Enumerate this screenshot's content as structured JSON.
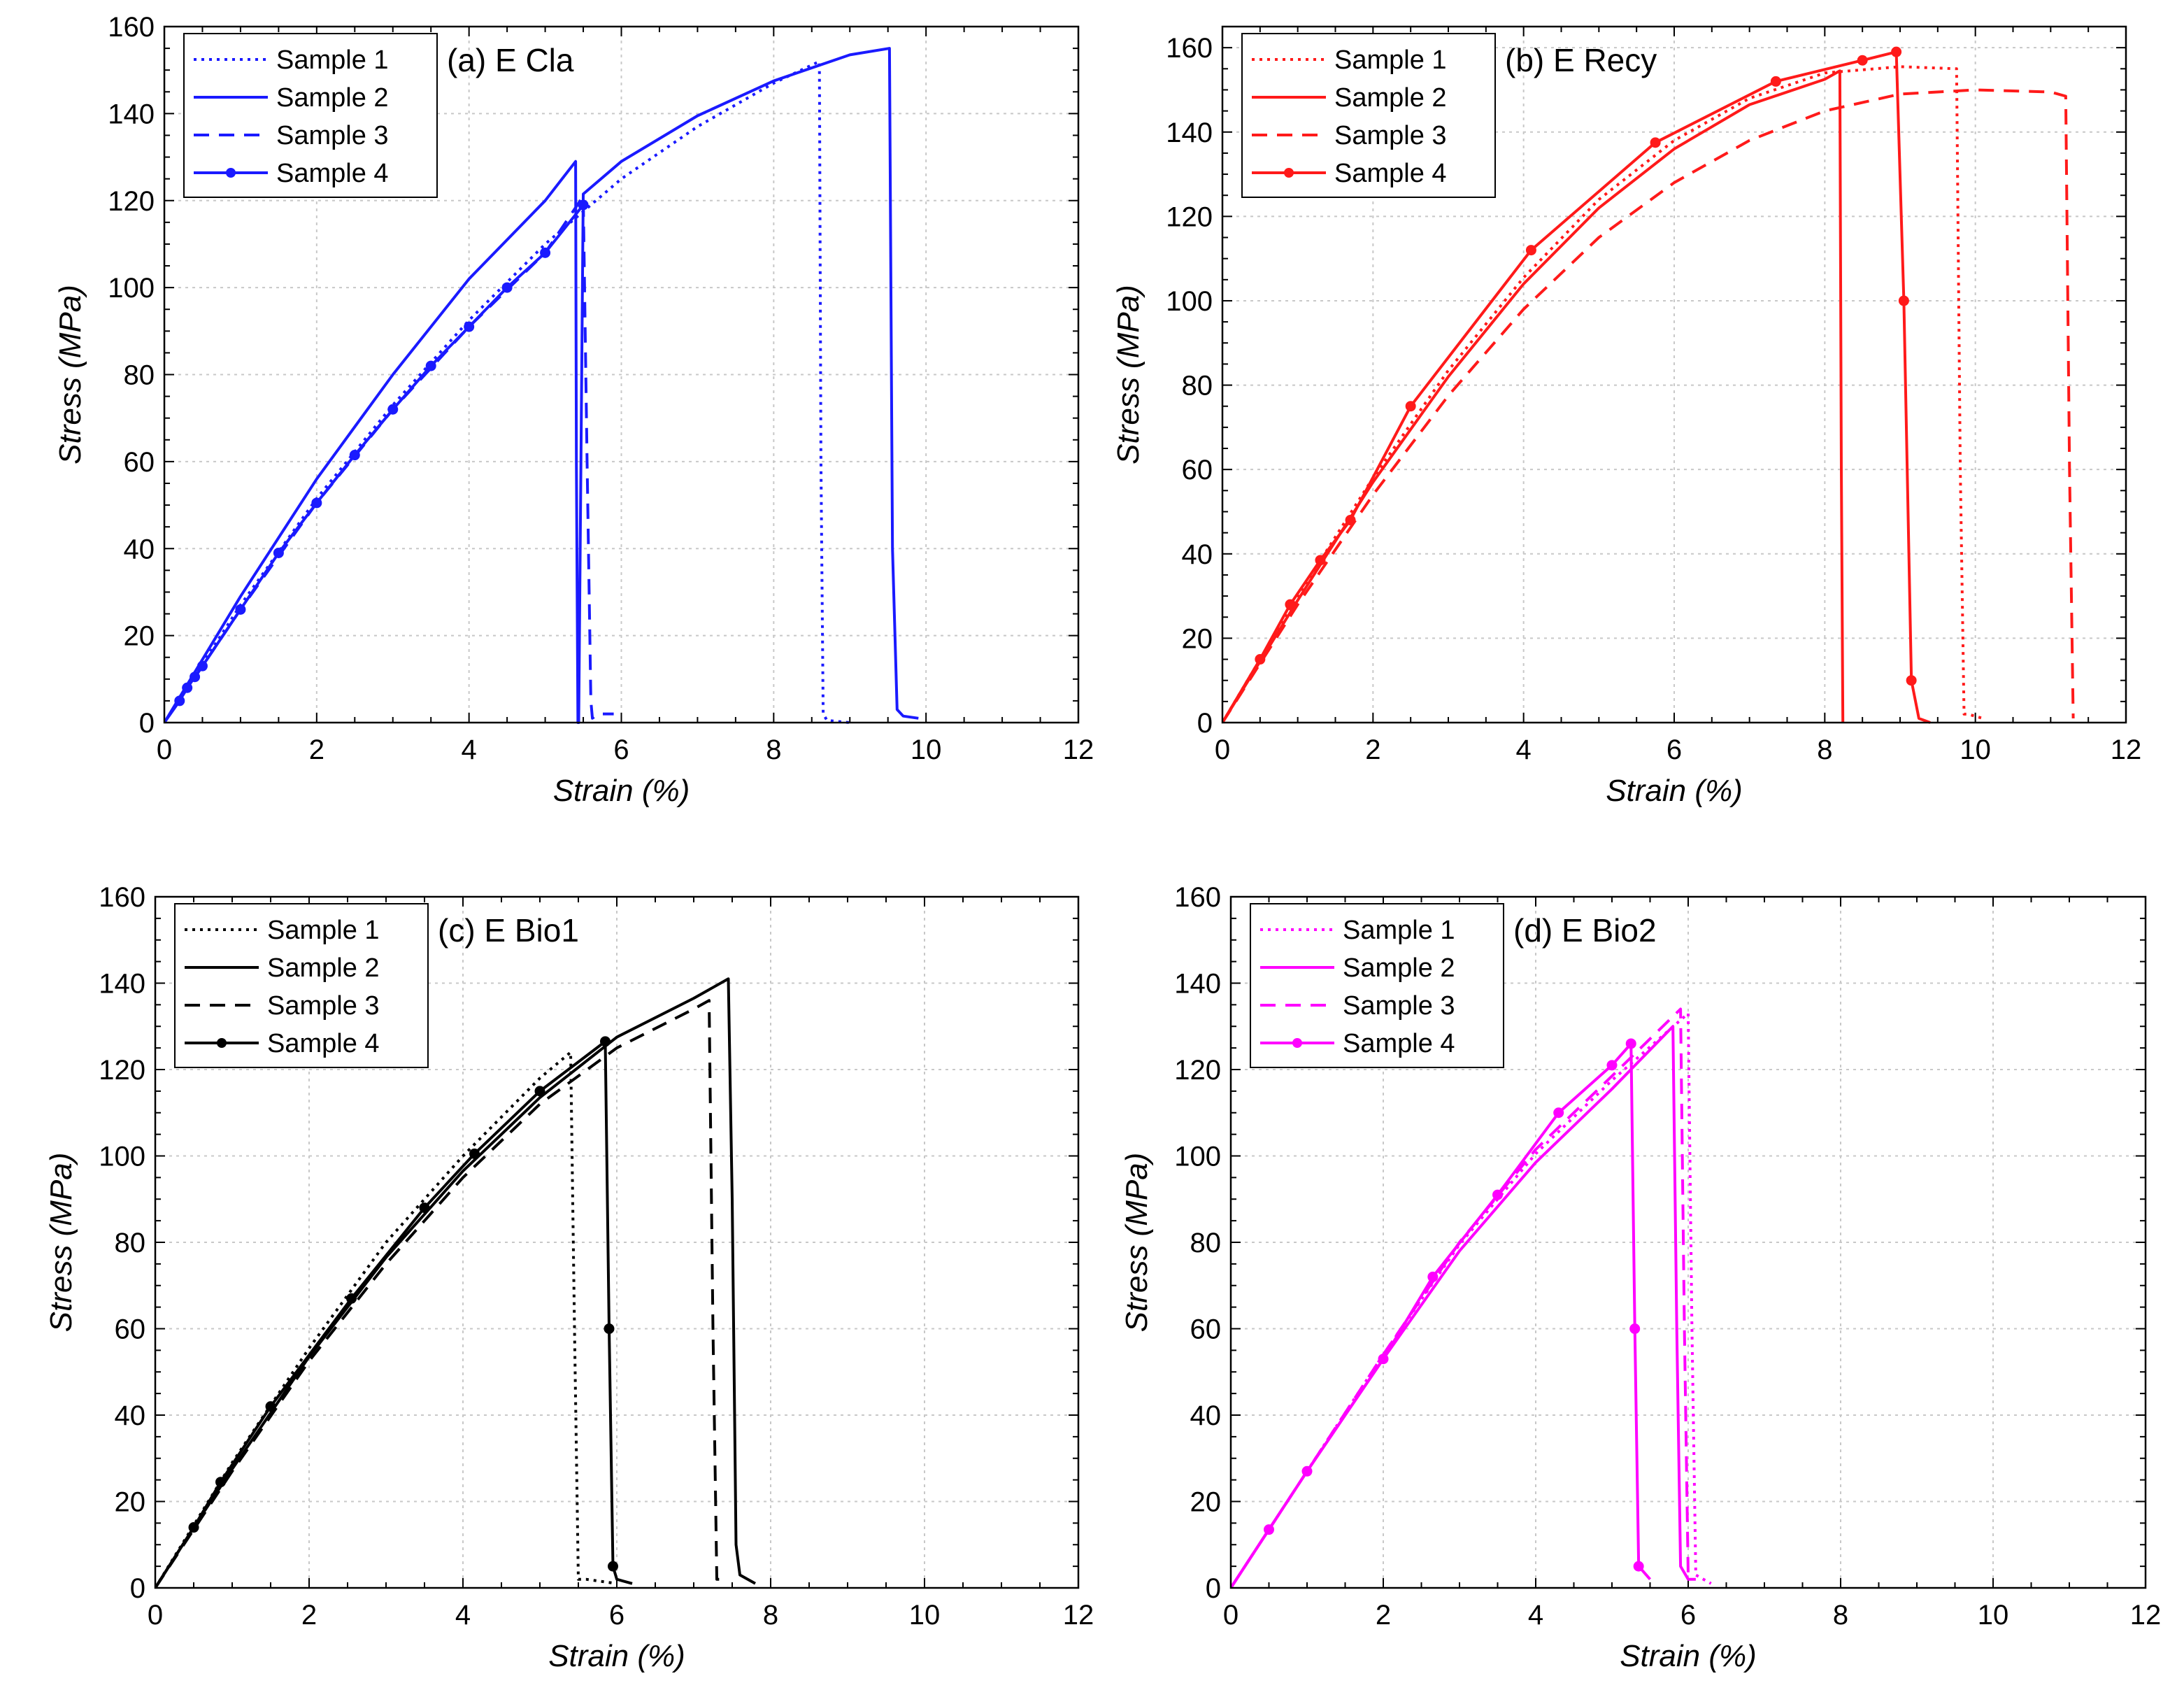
{
  "chart_data": [
    {
      "type": "line",
      "title": "(a) E Cla",
      "color": "#1a1aff",
      "xlabel": "Strain (%)",
      "ylabel": "Stress (MPa)",
      "xlim": [
        0,
        12
      ],
      "ylim": [
        0,
        160
      ],
      "xticks": [
        "0",
        "2",
        "4",
        "6",
        "8",
        "10",
        "12"
      ],
      "yticks": [
        "0",
        "20",
        "40",
        "60",
        "80",
        "100",
        "120",
        "140",
        "160"
      ],
      "grid": true,
      "legend_position": "top-left",
      "series": [
        {
          "name": "Sample 1",
          "style": "dotted",
          "marker": false,
          "x": [
            0,
            0.5,
            1,
            2,
            3,
            4,
            5,
            6,
            7,
            8,
            8.6,
            8.62,
            8.65,
            8.7,
            9.0
          ],
          "y": [
            0,
            13.5,
            27,
            51.5,
            73,
            92.5,
            110,
            125,
            137,
            147,
            152,
            60,
            2,
            0.5,
            0
          ]
        },
        {
          "name": "Sample 2",
          "style": "solid",
          "marker": false,
          "x": [
            0,
            0.5,
            1,
            2,
            3,
            4,
            5,
            5.4,
            5.41,
            5.43,
            5.44,
            5.5,
            6,
            7,
            8,
            9,
            9.52,
            9.56,
            9.62,
            9.7,
            9.9
          ],
          "y": [
            0,
            14.5,
            29,
            56,
            80,
            102,
            120,
            129,
            60,
            0,
            0,
            121.5,
            129,
            139.5,
            147.5,
            153.5,
            155,
            40,
            3,
            1.5,
            1
          ]
        },
        {
          "name": "Sample 3",
          "style": "dashed",
          "marker": false,
          "x": [
            0,
            0.5,
            1,
            2,
            3,
            4,
            5,
            5.5,
            5.55,
            5.6,
            5.62,
            5.7,
            5.9
          ],
          "y": [
            0,
            13,
            26,
            50.5,
            72,
            91,
            108,
            121,
            60,
            5,
            1,
            2,
            2
          ]
        },
        {
          "name": "Sample 4",
          "style": "solid",
          "marker": true,
          "x": [
            0,
            0.1,
            0.2,
            0.3,
            0.4,
            0.5,
            1,
            1.5,
            2,
            2.5,
            3,
            3.5,
            4,
            4.5,
            5,
            5.5
          ],
          "y": [
            0,
            2.5,
            5,
            8,
            10.5,
            13,
            26,
            39,
            50.5,
            61.5,
            72,
            82,
            91,
            100,
            108,
            119
          ]
        }
      ]
    },
    {
      "type": "line",
      "title": "(b) E Recy",
      "color": "#ff1a1a",
      "xlabel": "Strain (%)",
      "ylabel": "Stress (MPa)",
      "xlim": [
        0,
        12
      ],
      "ylim": [
        0,
        165
      ],
      "xticks": [
        "0",
        "2",
        "4",
        "6",
        "8",
        "10",
        "12"
      ],
      "yticks": [
        "0",
        "20",
        "40",
        "60",
        "80",
        "100",
        "120",
        "140",
        "160"
      ],
      "grid": true,
      "legend_position": "top-left",
      "series": [
        {
          "name": "Sample 1",
          "style": "dotted",
          "marker": false,
          "x": [
            0,
            0.5,
            1,
            2,
            3,
            4,
            5,
            6,
            7,
            8,
            9,
            9.75,
            9.8,
            9.85,
            9.9,
            10.1
          ],
          "y": [
            0,
            15,
            30,
            58,
            83.5,
            105.5,
            124,
            138,
            148,
            154,
            155.5,
            155,
            60,
            2,
            2,
            1
          ]
        },
        {
          "name": "Sample 2",
          "style": "solid",
          "marker": false,
          "x": [
            0,
            0.5,
            1,
            2,
            3,
            4,
            5,
            6,
            7,
            8,
            8.2,
            8.22,
            8.24
          ],
          "y": [
            0,
            14.5,
            29,
            57,
            82,
            104,
            122,
            136,
            146.5,
            152.5,
            154.5,
            60,
            0
          ]
        },
        {
          "name": "Sample 3",
          "style": "dashed",
          "marker": false,
          "x": [
            0,
            0.5,
            1,
            2,
            3,
            4,
            5,
            6,
            7,
            8,
            9,
            10,
            11,
            11.2,
            11.25,
            11.3
          ],
          "y": [
            0,
            14,
            28,
            54,
            77.5,
            98,
            115,
            128,
            138,
            145,
            149,
            150,
            149.5,
            148.5,
            60,
            1
          ]
        },
        {
          "name": "Sample 4",
          "style": "solid",
          "marker": true,
          "x": [
            0,
            0.5,
            0.9,
            1.3,
            1.7,
            2.5,
            4.1,
            5.75,
            7.35,
            8.5,
            8.95,
            9.05,
            9.15,
            9.25,
            9.4
          ],
          "y": [
            0,
            15,
            28,
            38.5,
            48,
            75,
            112,
            137.5,
            152,
            157,
            159,
            100,
            10,
            1,
            0
          ]
        }
      ]
    },
    {
      "type": "line",
      "title": "(c) E Bio1",
      "color": "#000000",
      "xlabel": "Strain (%)",
      "ylabel": "Stress (MPa)",
      "xlim": [
        0,
        12
      ],
      "ylim": [
        0,
        160
      ],
      "xticks": [
        "0",
        "2",
        "4",
        "6",
        "8",
        "10",
        "12"
      ],
      "yticks": [
        "0",
        "20",
        "40",
        "60",
        "80",
        "100",
        "120",
        "140",
        "160"
      ],
      "grid": true,
      "legend_position": "top-left",
      "series": [
        {
          "name": "Sample 1",
          "style": "dotted",
          "marker": false,
          "x": [
            0,
            0.5,
            1,
            2,
            3,
            4,
            5,
            5.4,
            5.45,
            5.5,
            5.6,
            6.0
          ],
          "y": [
            0,
            14.5,
            29,
            55.5,
            80,
            100,
            118,
            124,
            60,
            2,
            2,
            1
          ]
        },
        {
          "name": "Sample 2",
          "style": "solid",
          "marker": false,
          "x": [
            0,
            0.5,
            1,
            2,
            3,
            4,
            5,
            6,
            7,
            7.45,
            7.5,
            7.55,
            7.6,
            7.8
          ],
          "y": [
            0,
            14,
            27.5,
            53.5,
            76.5,
            96.5,
            113.5,
            127.5,
            136.5,
            141,
            90,
            10,
            3,
            1
          ]
        },
        {
          "name": "Sample 3",
          "style": "dashed",
          "marker": false,
          "x": [
            0,
            0.5,
            1,
            2,
            3,
            4,
            5,
            6,
            7,
            7.2,
            7.25,
            7.3,
            7.4
          ],
          "y": [
            0,
            13.5,
            27,
            52.5,
            75,
            95,
            112,
            125,
            134,
            136,
            60,
            2,
            2
          ]
        },
        {
          "name": "Sample 4",
          "style": "solid",
          "marker": true,
          "x": [
            0,
            0.5,
            0.85,
            1.5,
            2.55,
            3.5,
            4.15,
            5.0,
            5.85,
            5.9,
            5.95,
            6.0,
            6.2
          ],
          "y": [
            0,
            14,
            24.5,
            42,
            67,
            88,
            100.5,
            115,
            126.5,
            60,
            5,
            2,
            1
          ]
        }
      ]
    },
    {
      "type": "line",
      "title": "(d) E Bio2",
      "color": "#ff00ff",
      "xlabel": "Strain (%)",
      "ylabel": "Stress (MPa)",
      "xlim": [
        0,
        12
      ],
      "ylim": [
        0,
        160
      ],
      "xticks": [
        "0",
        "2",
        "4",
        "6",
        "8",
        "10",
        "12"
      ],
      "yticks": [
        "0",
        "20",
        "40",
        "60",
        "80",
        "100",
        "120",
        "140",
        "160"
      ],
      "grid": true,
      "legend_position": "top-left",
      "series": [
        {
          "name": "Sample 1",
          "style": "dotted",
          "marker": false,
          "x": [
            0,
            0.5,
            1,
            2,
            3,
            4,
            5,
            6.0,
            6.05,
            6.1,
            6.2,
            6.3
          ],
          "y": [
            0,
            13.5,
            27,
            54,
            79.5,
            100.5,
            117.5,
            133,
            60,
            3,
            2,
            1
          ]
        },
        {
          "name": "Sample 2",
          "style": "solid",
          "marker": false,
          "x": [
            0,
            0.5,
            1,
            2,
            3,
            4,
            5,
            5.8,
            5.85,
            5.9,
            6.0,
            6.1
          ],
          "y": [
            0,
            13.5,
            27,
            53,
            78,
            98.5,
            115.5,
            130,
            60,
            5,
            2,
            2
          ]
        },
        {
          "name": "Sample 3",
          "style": "dashed",
          "marker": false,
          "x": [
            0,
            0.5,
            1,
            2,
            3,
            4,
            5,
            5.9,
            5.95,
            6.0,
            6.05
          ],
          "y": [
            0,
            13.5,
            27,
            54,
            80,
            101.5,
            118.5,
            134,
            60,
            3,
            2
          ]
        },
        {
          "name": "Sample 4",
          "style": "solid",
          "marker": true,
          "x": [
            0,
            0.5,
            1.0,
            2.0,
            2.65,
            3.5,
            4.3,
            5.0,
            5.25,
            5.3,
            5.35,
            5.5
          ],
          "y": [
            0,
            13.5,
            27,
            53,
            72,
            91,
            110,
            121,
            126,
            60,
            5,
            2
          ]
        }
      ]
    }
  ]
}
